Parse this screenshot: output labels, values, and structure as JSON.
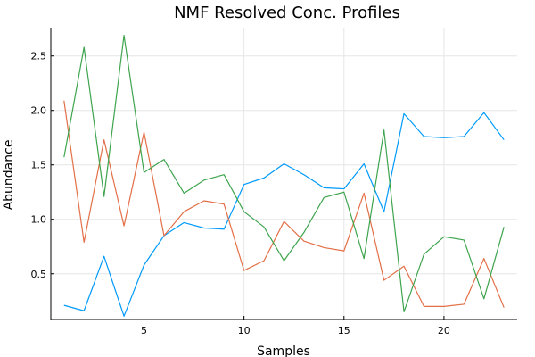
{
  "chart_data": {
    "type": "line",
    "title": "NMF Resolved Conc. Profiles",
    "xlabel": "Samples",
    "ylabel": "Abundance",
    "xlim": [
      0.34,
      23.66
    ],
    "ylim": [
      0.08,
      2.76
    ],
    "xticks": [
      5,
      10,
      15,
      20
    ],
    "yticks": [
      0.5,
      1.0,
      1.5,
      2.0,
      2.5
    ],
    "xtick_labels": [
      "5",
      "10",
      "15",
      "20"
    ],
    "ytick_labels": [
      "0.5",
      "1.0",
      "1.5",
      "2.0",
      "2.5"
    ],
    "grid": true,
    "legend": "none",
    "x": [
      1,
      2,
      3,
      4,
      5,
      6,
      7,
      8,
      9,
      10,
      11,
      12,
      13,
      14,
      15,
      16,
      17,
      18,
      19,
      20,
      21,
      22,
      23
    ],
    "series": [
      {
        "color": "#009AFA",
        "values": [
          0.21,
          0.16,
          0.66,
          0.11,
          0.58,
          0.85,
          0.97,
          0.92,
          0.91,
          1.32,
          1.38,
          1.51,
          1.41,
          1.29,
          1.28,
          1.51,
          1.07,
          1.97,
          1.76,
          1.75,
          1.76,
          1.98,
          1.73
        ]
      },
      {
        "color": "#E36F47",
        "values": [
          2.09,
          0.79,
          1.73,
          0.94,
          1.8,
          0.85,
          1.07,
          1.17,
          1.14,
          0.53,
          0.62,
          0.98,
          0.8,
          0.74,
          0.71,
          1.24,
          0.44,
          0.57,
          0.2,
          0.2,
          0.22,
          0.64,
          0.19
        ]
      },
      {
        "color": "#3EA44E",
        "values": [
          1.57,
          2.58,
          1.21,
          2.69,
          1.43,
          1.55,
          1.24,
          1.36,
          1.41,
          1.07,
          0.93,
          0.62,
          0.88,
          1.2,
          1.25,
          0.64,
          1.82,
          0.15,
          0.68,
          0.84,
          0.81,
          0.27,
          0.93
        ]
      }
    ]
  }
}
